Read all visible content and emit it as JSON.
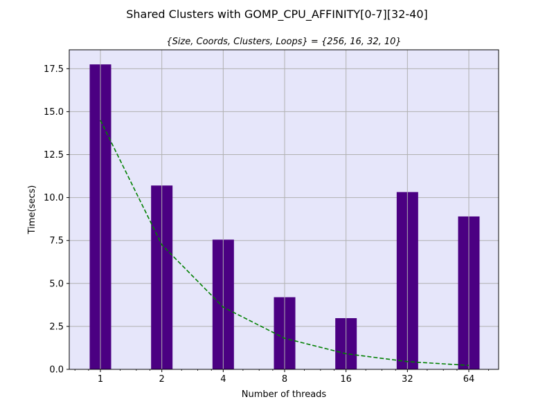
{
  "chart_data": {
    "type": "bar",
    "title": "Shared Clusters with GOMP_CPU_AFFINITY[0-7][32-40]",
    "subtitle": "{Size, Coords, Clusters, Loops} = {256, 16, 32, 10}",
    "xlabel": "Number of threads",
    "ylabel": "Time(secs)",
    "x_scale": "log2",
    "categories": [
      "1",
      "2",
      "4",
      "8",
      "16",
      "32",
      "64"
    ],
    "x": [
      1,
      2,
      4,
      8,
      16,
      32,
      64
    ],
    "values": [
      17.75,
      10.7,
      7.55,
      4.2,
      2.98,
      10.32,
      8.9
    ],
    "ideal_curve": {
      "style": "dashed",
      "values": [
        14.5,
        7.25,
        3.62,
        1.81,
        0.91,
        0.45,
        0.23
      ]
    },
    "ylim": [
      0,
      18.6
    ],
    "yticks": [
      "0.0",
      "2.5",
      "5.0",
      "7.5",
      "10.0",
      "12.5",
      "15.0",
      "17.5"
    ],
    "ytick_values": [
      0,
      2.5,
      5.0,
      7.5,
      10.0,
      12.5,
      15.0,
      17.5
    ],
    "grid": true,
    "colors": {
      "bar": "#4b0082",
      "curve": "#008000",
      "plot_background": "#e6e6fa",
      "grid": "#b0b0b0"
    }
  }
}
